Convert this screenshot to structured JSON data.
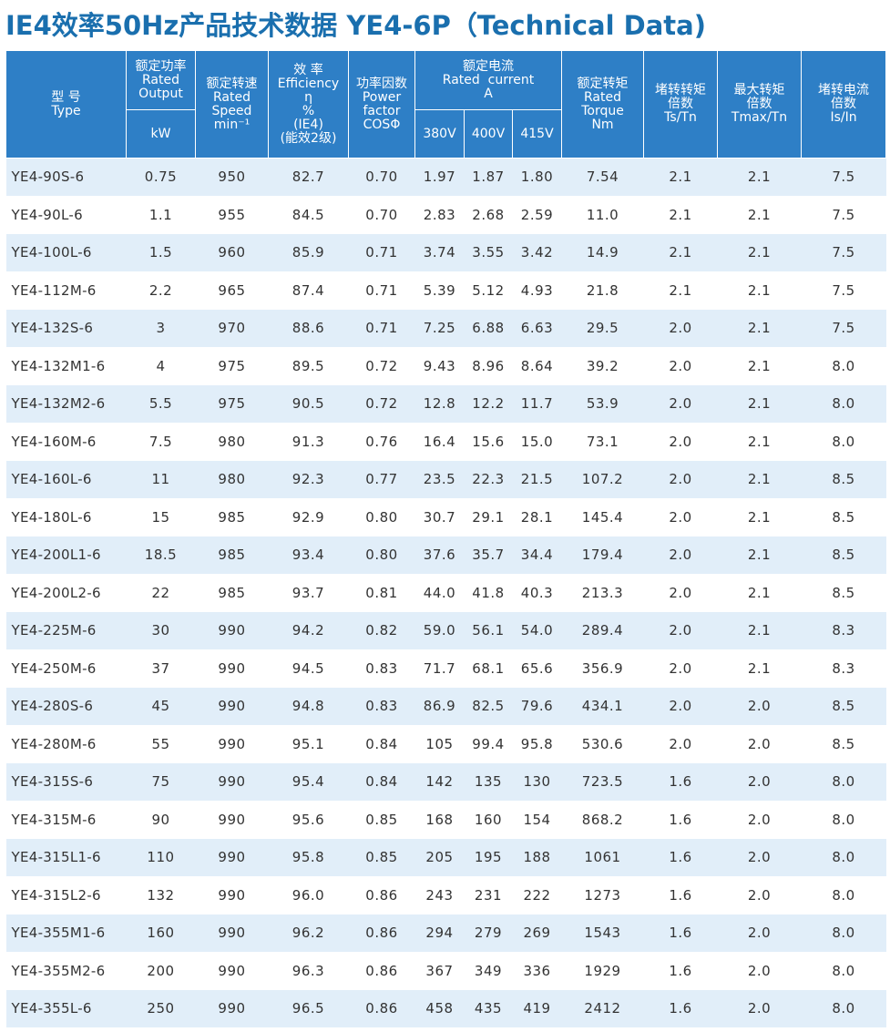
{
  "title": "IE4效率50Hz产品技术数据 YE4-6P（Technical Data)",
  "header": {
    "type_cn": "型 号",
    "type_en": "Type",
    "output_cn": "额定功率",
    "output_en1": "Rated",
    "output_en2": "Output",
    "output_unit": "kW",
    "speed_cn": "额定转速",
    "speed_en1": "Rated",
    "speed_en2": "Speed",
    "speed_unit": "min⁻¹",
    "eff_cn": "效 率",
    "eff_en": "Efficiency",
    "eff_sym": "η",
    "eff_pct": "%",
    "eff_ie4": "(IE4)",
    "eff_grade": "(能效2级)",
    "pf_cn": "功率因数",
    "pf_en1": "Power",
    "pf_en2": "factor",
    "pf_sym": "COSΦ",
    "cur_cn": "额定电流",
    "cur_en": "Rated  current",
    "cur_unit": "A",
    "v380": "380V",
    "v400": "400V",
    "v415": "415V",
    "torque_cn": "额定转矩",
    "torque_en1": "Rated",
    "torque_en2": "Torque",
    "torque_unit": "Nm",
    "ts_cn1": "堵转转矩",
    "ts_cn2": "倍数",
    "ts_en": "Ts/Tn",
    "tmax_cn1": "最大转矩",
    "tmax_cn2": "倍数",
    "tmax_en": "Tmax/Tn",
    "is_cn1": "堵转电流",
    "is_cn2": "倍数",
    "is_en": "Is/In"
  },
  "rows": [
    [
      "YE4-90S-6",
      "0.75",
      "950",
      "82.7",
      "0.70",
      "1.97",
      "1.87",
      "1.80",
      "7.54",
      "2.1",
      "2.1",
      "7.5"
    ],
    [
      "YE4-90L-6",
      "1.1",
      "955",
      "84.5",
      "0.70",
      "2.83",
      "2.68",
      "2.59",
      "11.0",
      "2.1",
      "2.1",
      "7.5"
    ],
    [
      "YE4-100L-6",
      "1.5",
      "960",
      "85.9",
      "0.71",
      "3.74",
      "3.55",
      "3.42",
      "14.9",
      "2.1",
      "2.1",
      "7.5"
    ],
    [
      "YE4-112M-6",
      "2.2",
      "965",
      "87.4",
      "0.71",
      "5.39",
      "5.12",
      "4.93",
      "21.8",
      "2.1",
      "2.1",
      "7.5"
    ],
    [
      "YE4-132S-6",
      "3",
      "970",
      "88.6",
      "0.71",
      "7.25",
      "6.88",
      "6.63",
      "29.5",
      "2.0",
      "2.1",
      "7.5"
    ],
    [
      "YE4-132M1-6",
      "4",
      "975",
      "89.5",
      "0.72",
      "9.43",
      "8.96",
      "8.64",
      "39.2",
      "2.0",
      "2.1",
      "8.0"
    ],
    [
      "YE4-132M2-6",
      "5.5",
      "975",
      "90.5",
      "0.72",
      "12.8",
      "12.2",
      "11.7",
      "53.9",
      "2.0",
      "2.1",
      "8.0"
    ],
    [
      "YE4-160M-6",
      "7.5",
      "980",
      "91.3",
      "0.76",
      "16.4",
      "15.6",
      "15.0",
      "73.1",
      "2.0",
      "2.1",
      "8.0"
    ],
    [
      "YE4-160L-6",
      "11",
      "980",
      "92.3",
      "0.77",
      "23.5",
      "22.3",
      "21.5",
      "107.2",
      "2.0",
      "2.1",
      "8.5"
    ],
    [
      "YE4-180L-6",
      "15",
      "985",
      "92.9",
      "0.80",
      "30.7",
      "29.1",
      "28.1",
      "145.4",
      "2.0",
      "2.1",
      "8.5"
    ],
    [
      "YE4-200L1-6",
      "18.5",
      "985",
      "93.4",
      "0.80",
      "37.6",
      "35.7",
      "34.4",
      "179.4",
      "2.0",
      "2.1",
      "8.5"
    ],
    [
      "YE4-200L2-6",
      "22",
      "985",
      "93.7",
      "0.81",
      "44.0",
      "41.8",
      "40.3",
      "213.3",
      "2.0",
      "2.1",
      "8.5"
    ],
    [
      "YE4-225M-6",
      "30",
      "990",
      "94.2",
      "0.82",
      "59.0",
      "56.1",
      "54.0",
      "289.4",
      "2.0",
      "2.1",
      "8.3"
    ],
    [
      "YE4-250M-6",
      "37",
      "990",
      "94.5",
      "0.83",
      "71.7",
      "68.1",
      "65.6",
      "356.9",
      "2.0",
      "2.1",
      "8.3"
    ],
    [
      "YE4-280S-6",
      "45",
      "990",
      "94.8",
      "0.83",
      "86.9",
      "82.5",
      "79.6",
      "434.1",
      "2.0",
      "2.0",
      "8.5"
    ],
    [
      "YE4-280M-6",
      "55",
      "990",
      "95.1",
      "0.84",
      "105",
      "99.4",
      "95.8",
      "530.6",
      "2.0",
      "2.0",
      "8.5"
    ],
    [
      "YE4-315S-6",
      "75",
      "990",
      "95.4",
      "0.84",
      "142",
      "135",
      "130",
      "723.5",
      "1.6",
      "2.0",
      "8.0"
    ],
    [
      "YE4-315M-6",
      "90",
      "990",
      "95.6",
      "0.85",
      "168",
      "160",
      "154",
      "868.2",
      "1.6",
      "2.0",
      "8.0"
    ],
    [
      "YE4-315L1-6",
      "110",
      "990",
      "95.8",
      "0.85",
      "205",
      "195",
      "188",
      "1061",
      "1.6",
      "2.0",
      "8.0"
    ],
    [
      "YE4-315L2-6",
      "132",
      "990",
      "96.0",
      "0.86",
      "243",
      "231",
      "222",
      "1273",
      "1.6",
      "2.0",
      "8.0"
    ],
    [
      "YE4-355M1-6",
      "160",
      "990",
      "96.2",
      "0.86",
      "294",
      "279",
      "269",
      "1543",
      "1.6",
      "2.0",
      "8.0"
    ],
    [
      "YE4-355M2-6",
      "200",
      "990",
      "96.3",
      "0.86",
      "367",
      "349",
      "336",
      "1929",
      "1.6",
      "2.0",
      "8.0"
    ],
    [
      "YE4-355L-6",
      "250",
      "990",
      "96.5",
      "0.86",
      "458",
      "435",
      "419",
      "2412",
      "1.6",
      "2.0",
      "8.0"
    ]
  ]
}
